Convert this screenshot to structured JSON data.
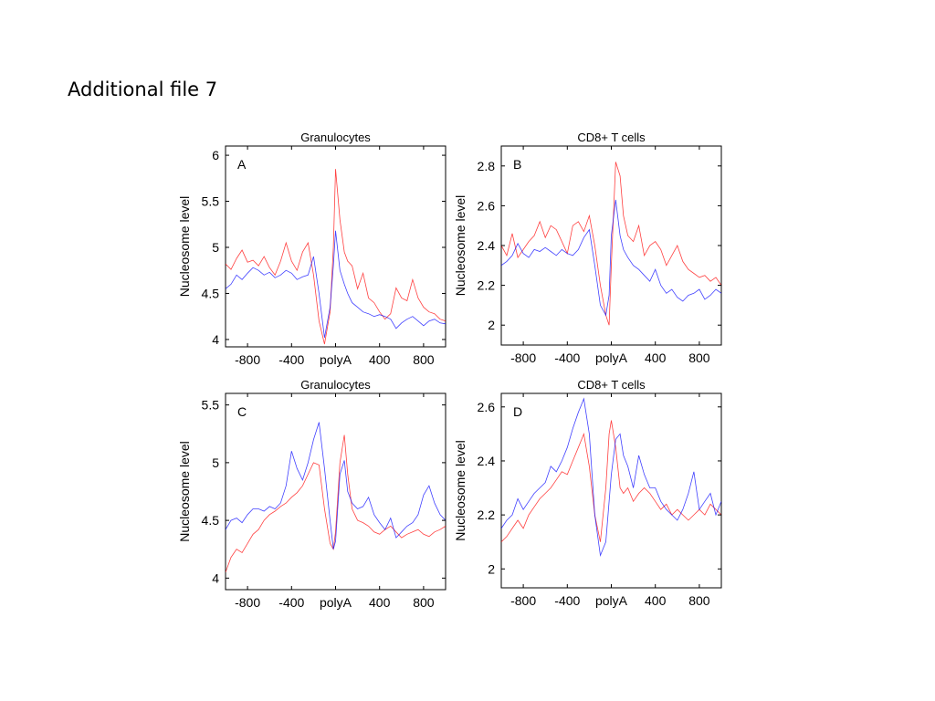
{
  "slide": {
    "title": "Additional file 7"
  },
  "colors": {
    "series_red": "#ff0000",
    "series_blue": "#0000ff"
  },
  "chart_data": [
    {
      "type": "line",
      "panel_label": "A",
      "title": "Granulocytes",
      "ylabel": "Nucleosome level",
      "xlim": [
        -1000,
        1000
      ],
      "ylim": [
        3.92,
        6.1
      ],
      "xticks": [
        -800,
        -400,
        0,
        400,
        800
      ],
      "xtick_labels": [
        "-800",
        "-400",
        "polyA",
        "400",
        "800"
      ],
      "yticks": [
        4,
        4.5,
        5,
        5.5,
        6
      ],
      "ytick_labels": [
        "4",
        "4.5",
        "5",
        "5.5",
        "6"
      ],
      "x": [
        -1000,
        -950,
        -900,
        -850,
        -800,
        -750,
        -700,
        -650,
        -600,
        -550,
        -500,
        -450,
        -400,
        -350,
        -300,
        -250,
        -200,
        -150,
        -100,
        -50,
        -20,
        0,
        40,
        80,
        110,
        150,
        200,
        250,
        300,
        350,
        400,
        450,
        500,
        550,
        600,
        650,
        700,
        750,
        800,
        850,
        900,
        950,
        1000
      ],
      "series": [
        {
          "color": "red",
          "values": [
            4.82,
            4.76,
            4.88,
            4.97,
            4.84,
            4.86,
            4.8,
            4.9,
            4.78,
            4.7,
            4.85,
            5.05,
            4.85,
            4.75,
            4.95,
            5.05,
            4.7,
            4.2,
            3.95,
            4.3,
            5.0,
            5.85,
            5.3,
            4.95,
            4.85,
            4.8,
            4.55,
            4.72,
            4.45,
            4.4,
            4.3,
            4.22,
            4.28,
            4.56,
            4.45,
            4.42,
            4.65,
            4.45,
            4.35,
            4.3,
            4.28,
            4.22,
            4.2
          ]
        },
        {
          "color": "blue",
          "values": [
            4.55,
            4.6,
            4.7,
            4.65,
            4.72,
            4.78,
            4.75,
            4.7,
            4.73,
            4.67,
            4.7,
            4.75,
            4.72,
            4.65,
            4.68,
            4.7,
            4.9,
            4.5,
            4.02,
            4.35,
            4.8,
            5.18,
            4.75,
            4.6,
            4.5,
            4.4,
            4.35,
            4.3,
            4.28,
            4.25,
            4.27,
            4.25,
            4.22,
            4.12,
            4.18,
            4.22,
            4.25,
            4.2,
            4.15,
            4.2,
            4.22,
            4.18,
            4.17
          ]
        }
      ]
    },
    {
      "type": "line",
      "panel_label": "B",
      "title": "CD8+ T cells",
      "ylabel": "Nucleosome level",
      "xlim": [
        -1000,
        1000
      ],
      "ylim": [
        1.9,
        2.9
      ],
      "xticks": [
        -800,
        -400,
        0,
        400,
        800
      ],
      "xtick_labels": [
        "-800",
        "-400",
        "polyA",
        "400",
        "800"
      ],
      "yticks": [
        2,
        2.2,
        2.4,
        2.6,
        2.8
      ],
      "ytick_labels": [
        "2",
        "2.2",
        "2.4",
        "2.6",
        "2.8"
      ],
      "x": [
        -1000,
        -950,
        -900,
        -850,
        -800,
        -750,
        -700,
        -650,
        -600,
        -550,
        -500,
        -450,
        -400,
        -350,
        -300,
        -250,
        -200,
        -150,
        -100,
        -50,
        -20,
        0,
        40,
        80,
        110,
        150,
        200,
        250,
        300,
        350,
        400,
        450,
        500,
        550,
        600,
        650,
        700,
        750,
        800,
        850,
        900,
        950,
        1000
      ],
      "series": [
        {
          "color": "red",
          "values": [
            2.4,
            2.35,
            2.46,
            2.34,
            2.38,
            2.42,
            2.45,
            2.52,
            2.44,
            2.5,
            2.48,
            2.42,
            2.36,
            2.5,
            2.52,
            2.47,
            2.55,
            2.4,
            2.2,
            2.05,
            2.0,
            2.3,
            2.82,
            2.75,
            2.55,
            2.45,
            2.42,
            2.5,
            2.35,
            2.4,
            2.42,
            2.38,
            2.3,
            2.35,
            2.4,
            2.32,
            2.28,
            2.26,
            2.24,
            2.25,
            2.22,
            2.24,
            2.2
          ]
        },
        {
          "color": "blue",
          "values": [
            2.3,
            2.32,
            2.35,
            2.41,
            2.36,
            2.34,
            2.38,
            2.37,
            2.39,
            2.37,
            2.35,
            2.38,
            2.36,
            2.35,
            2.38,
            2.44,
            2.48,
            2.3,
            2.1,
            2.05,
            2.15,
            2.45,
            2.63,
            2.45,
            2.38,
            2.34,
            2.3,
            2.28,
            2.25,
            2.22,
            2.28,
            2.2,
            2.16,
            2.18,
            2.14,
            2.12,
            2.15,
            2.16,
            2.18,
            2.13,
            2.15,
            2.18,
            2.16
          ]
        }
      ]
    },
    {
      "type": "line",
      "panel_label": "C",
      "title": "Granulocytes",
      "ylabel": "Nucleosome level",
      "xlim": [
        -1000,
        1000
      ],
      "ylim": [
        3.9,
        5.6
      ],
      "xticks": [
        -800,
        -400,
        0,
        400,
        800
      ],
      "xtick_labels": [
        "-800",
        "-400",
        "polyA",
        "400",
        "800"
      ],
      "yticks": [
        4,
        4.5,
        5,
        5.5
      ],
      "ytick_labels": [
        "4",
        "4.5",
        "5",
        "5.5"
      ],
      "x": [
        -1000,
        -950,
        -900,
        -850,
        -800,
        -750,
        -700,
        -650,
        -600,
        -550,
        -500,
        -450,
        -400,
        -350,
        -300,
        -250,
        -200,
        -150,
        -100,
        -50,
        -20,
        0,
        40,
        80,
        110,
        150,
        200,
        250,
        300,
        350,
        400,
        450,
        500,
        550,
        600,
        650,
        700,
        750,
        800,
        850,
        900,
        950,
        1000
      ],
      "series": [
        {
          "color": "red",
          "values": [
            4.05,
            4.18,
            4.25,
            4.22,
            4.3,
            4.38,
            4.42,
            4.5,
            4.55,
            4.58,
            4.62,
            4.65,
            4.7,
            4.74,
            4.8,
            4.9,
            5.0,
            4.98,
            4.6,
            4.3,
            4.25,
            4.4,
            5.0,
            5.24,
            4.9,
            4.6,
            4.5,
            4.48,
            4.45,
            4.4,
            4.38,
            4.42,
            4.45,
            4.4,
            4.35,
            4.38,
            4.4,
            4.42,
            4.38,
            4.36,
            4.4,
            4.42,
            4.45
          ]
        },
        {
          "color": "blue",
          "values": [
            4.42,
            4.5,
            4.52,
            4.48,
            4.55,
            4.6,
            4.6,
            4.58,
            4.62,
            4.6,
            4.65,
            4.8,
            5.1,
            4.95,
            4.85,
            5.0,
            5.2,
            5.35,
            4.95,
            4.5,
            4.25,
            4.32,
            4.9,
            5.02,
            4.75,
            4.65,
            4.6,
            4.62,
            4.7,
            4.55,
            4.48,
            4.42,
            4.52,
            4.35,
            4.4,
            4.45,
            4.48,
            4.55,
            4.72,
            4.8,
            4.65,
            4.55,
            4.5
          ]
        }
      ]
    },
    {
      "type": "line",
      "panel_label": "D",
      "title": "CD8+ T cells",
      "ylabel": "Nucleosome level",
      "xlim": [
        -1000,
        1000
      ],
      "ylim": [
        1.93,
        2.65
      ],
      "xticks": [
        -800,
        -400,
        0,
        400,
        800
      ],
      "xtick_labels": [
        "-800",
        "-400",
        "polyA",
        "400",
        "800"
      ],
      "yticks": [
        2,
        2.2,
        2.4,
        2.6
      ],
      "ytick_labels": [
        "2",
        "2.2",
        "2.4",
        "2.6"
      ],
      "x": [
        -1000,
        -950,
        -900,
        -850,
        -800,
        -750,
        -700,
        -650,
        -600,
        -550,
        -500,
        -450,
        -400,
        -350,
        -300,
        -250,
        -200,
        -150,
        -100,
        -50,
        -20,
        0,
        40,
        80,
        110,
        150,
        200,
        250,
        300,
        350,
        400,
        450,
        500,
        550,
        600,
        650,
        700,
        750,
        800,
        850,
        900,
        950,
        1000
      ],
      "series": [
        {
          "color": "red",
          "values": [
            2.1,
            2.12,
            2.15,
            2.18,
            2.15,
            2.2,
            2.23,
            2.26,
            2.28,
            2.3,
            2.33,
            2.36,
            2.35,
            2.4,
            2.45,
            2.5,
            2.38,
            2.2,
            2.1,
            2.3,
            2.5,
            2.55,
            2.45,
            2.3,
            2.28,
            2.3,
            2.25,
            2.28,
            2.3,
            2.28,
            2.25,
            2.22,
            2.24,
            2.2,
            2.22,
            2.2,
            2.18,
            2.2,
            2.22,
            2.2,
            2.24,
            2.22,
            2.2
          ]
        },
        {
          "color": "blue",
          "values": [
            2.15,
            2.18,
            2.2,
            2.26,
            2.22,
            2.25,
            2.28,
            2.3,
            2.32,
            2.38,
            2.36,
            2.4,
            2.45,
            2.52,
            2.58,
            2.63,
            2.5,
            2.2,
            2.05,
            2.1,
            2.25,
            2.35,
            2.48,
            2.5,
            2.42,
            2.38,
            2.3,
            2.42,
            2.35,
            2.3,
            2.3,
            2.25,
            2.22,
            2.2,
            2.18,
            2.22,
            2.28,
            2.36,
            2.22,
            2.25,
            2.28,
            2.2,
            2.25
          ]
        }
      ]
    }
  ]
}
